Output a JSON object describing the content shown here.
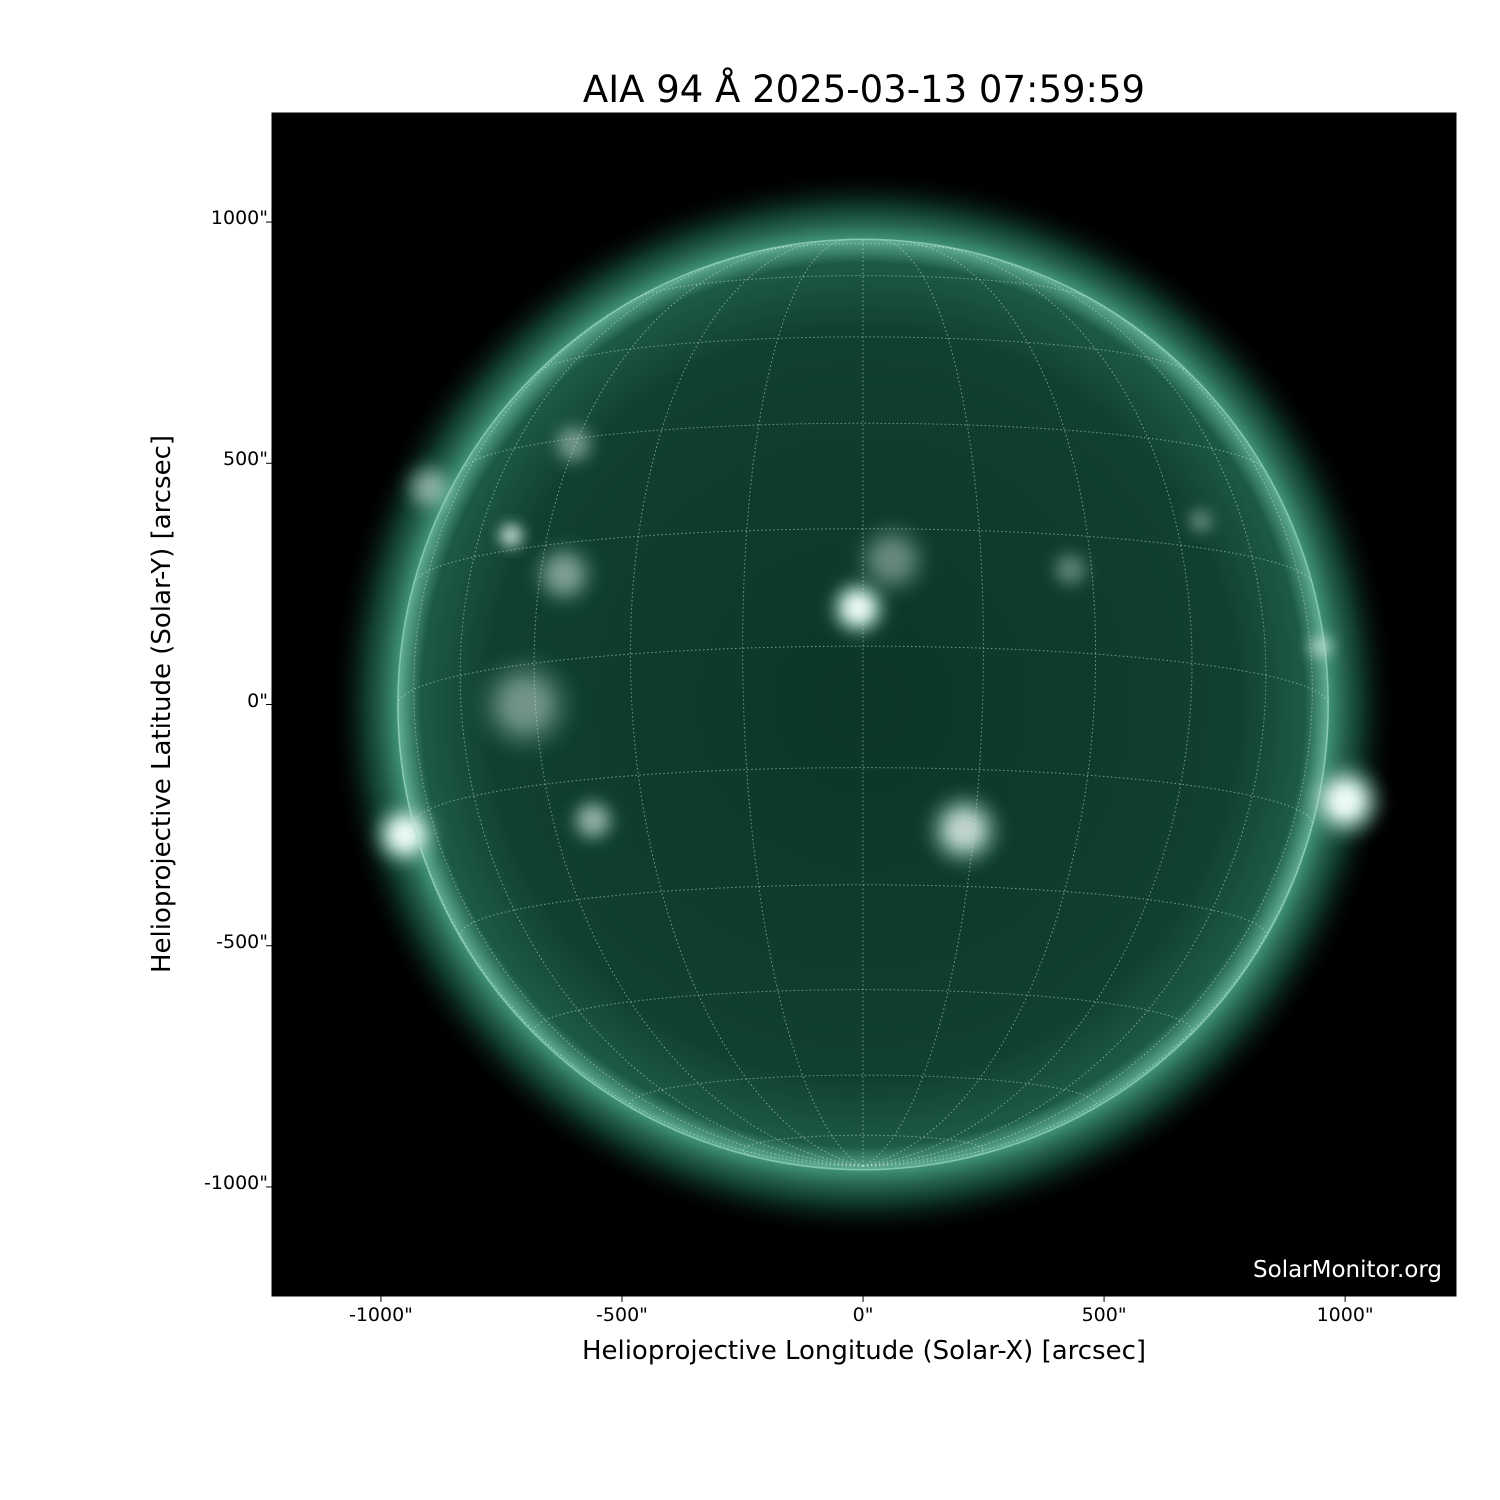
{
  "title": "AIA 94 Å 2025-03-13 07:59:59",
  "watermark": "SolarMonitor.org",
  "colors": {
    "disk": "#0d3a2c",
    "limb": "#8fd6bd",
    "background": "#000000"
  },
  "chart_data": {
    "type": "heatmap",
    "title": "AIA 94 Å 2025-03-13 07:59:59",
    "xlabel": "Helioprojective Longitude (Solar-X) [arcsec]",
    "ylabel": "Helioprojective Latitude (Solar-Y) [arcsec]",
    "xlim": [
      -1226,
      1230
    ],
    "ylim": [
      -1226,
      1226
    ],
    "xticks": [
      {
        "v": -1000,
        "label": "-1000\""
      },
      {
        "v": -500,
        "label": "-500\""
      },
      {
        "v": 0,
        "label": "0\""
      },
      {
        "v": 500,
        "label": "500\""
      },
      {
        "v": 1000,
        "label": "1000\""
      }
    ],
    "yticks": [
      {
        "v": 1000,
        "label": "1000\""
      },
      {
        "v": 500,
        "label": "500\""
      },
      {
        "v": 0,
        "label": "0\""
      },
      {
        "v": -500,
        "label": "-500\""
      },
      {
        "v": -1000,
        "label": "-1000\""
      }
    ],
    "solar_radius_arcsec": 965,
    "grid": "heliographic, 15° spacing, dotted"
  }
}
